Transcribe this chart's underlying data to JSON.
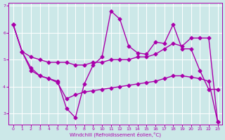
{
  "bg_color": "#cce8e8",
  "line_color": "#aa00aa",
  "grid_color": "#ffffff",
  "xlabel": "Windchill (Refroidissement éolien,°C)",
  "xlabel_color": "#aa00aa",
  "xlim": [
    -0.5,
    23.5
  ],
  "ylim": [
    2.6,
    7.1
  ],
  "yticks": [
    3,
    4,
    5,
    6,
    7
  ],
  "xticks": [
    0,
    1,
    2,
    3,
    4,
    5,
    6,
    7,
    8,
    9,
    10,
    11,
    12,
    13,
    14,
    15,
    16,
    17,
    18,
    19,
    20,
    21,
    22,
    23
  ],
  "series1_x": [
    0,
    1,
    2,
    3,
    4,
    5,
    6,
    7,
    8,
    9,
    10,
    11,
    12,
    13,
    14,
    15,
    16,
    17,
    18,
    19,
    20,
    21,
    22,
    23
  ],
  "series1_y": [
    6.3,
    5.3,
    5.1,
    5.0,
    4.9,
    4.9,
    4.9,
    4.8,
    4.8,
    4.9,
    4.9,
    5.0,
    5.0,
    5.0,
    5.1,
    5.1,
    5.2,
    5.4,
    5.6,
    5.5,
    5.8,
    5.8,
    5.8,
    2.7
  ],
  "series2_x": [
    0,
    1,
    2,
    3,
    4,
    5,
    6,
    7,
    8,
    9,
    10,
    11,
    12,
    13,
    14,
    15,
    16,
    17,
    18,
    19,
    20,
    21,
    22,
    23
  ],
  "series2_y": [
    6.3,
    5.3,
    4.6,
    4.4,
    4.3,
    4.2,
    3.2,
    2.85,
    4.1,
    4.8,
    5.1,
    6.8,
    6.5,
    5.5,
    5.25,
    5.2,
    5.65,
    5.6,
    6.3,
    5.4,
    5.4,
    4.6,
    3.9,
    3.9
  ],
  "series3_x": [
    0,
    1,
    2,
    3,
    4,
    5,
    6,
    7,
    8,
    9,
    10,
    11,
    12,
    13,
    14,
    15,
    16,
    17,
    18,
    19,
    20,
    21,
    22,
    23
  ],
  "series3_y": [
    6.3,
    5.3,
    4.7,
    4.4,
    4.3,
    4.15,
    3.55,
    3.7,
    3.8,
    3.85,
    3.9,
    3.95,
    4.0,
    4.05,
    4.1,
    4.15,
    4.2,
    4.3,
    4.4,
    4.4,
    4.35,
    4.3,
    4.2,
    2.7
  ],
  "marker": "D",
  "markersize": 2.5,
  "linewidth": 1.0
}
